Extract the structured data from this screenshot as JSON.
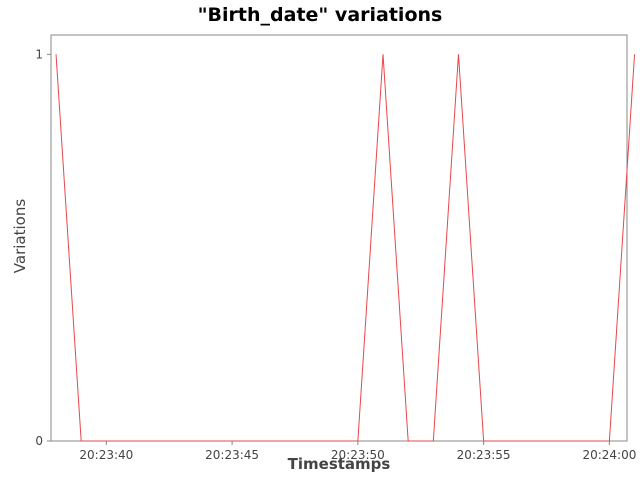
{
  "chart_data": {
    "type": "line",
    "title": "\"Birth_date\" variations",
    "xlabel": "Timestamps",
    "ylabel": "Variations",
    "x_format": "HH:MM:SS",
    "x_ticks": [
      "20:23:40",
      "20:23:45",
      "20:23:50",
      "20:23:55",
      "20:24:00"
    ],
    "y_ticks": [
      "0",
      "1"
    ],
    "xlim": [
      "20:23:37.8",
      "20:24:00.7"
    ],
    "ylim": [
      0,
      1.05
    ],
    "grid": false,
    "legend": "none",
    "series": [
      {
        "color": "#e8474a",
        "points": [
          {
            "x": "20:23:38",
            "y": 1
          },
          {
            "x": "20:23:39",
            "y": 0
          },
          {
            "x": "20:23:40",
            "y": 0
          },
          {
            "x": "20:23:41",
            "y": 0
          },
          {
            "x": "20:23:42",
            "y": 0
          },
          {
            "x": "20:23:43",
            "y": 0
          },
          {
            "x": "20:23:44",
            "y": 0
          },
          {
            "x": "20:23:45",
            "y": 0
          },
          {
            "x": "20:23:46",
            "y": 0
          },
          {
            "x": "20:23:47",
            "y": 0
          },
          {
            "x": "20:23:48",
            "y": 0
          },
          {
            "x": "20:23:49",
            "y": 0
          },
          {
            "x": "20:23:50",
            "y": 0
          },
          {
            "x": "20:23:51",
            "y": 1
          },
          {
            "x": "20:23:52",
            "y": 0
          },
          {
            "x": "20:23:53",
            "y": 0
          },
          {
            "x": "20:23:54",
            "y": 1
          },
          {
            "x": "20:23:55",
            "y": 0
          },
          {
            "x": "20:23:56",
            "y": 0
          },
          {
            "x": "20:23:57",
            "y": 0
          },
          {
            "x": "20:23:58",
            "y": 0
          },
          {
            "x": "20:23:59",
            "y": 0
          },
          {
            "x": "20:24:00",
            "y": 0
          },
          {
            "x": "20:24:01",
            "y": 1
          }
        ]
      }
    ]
  }
}
